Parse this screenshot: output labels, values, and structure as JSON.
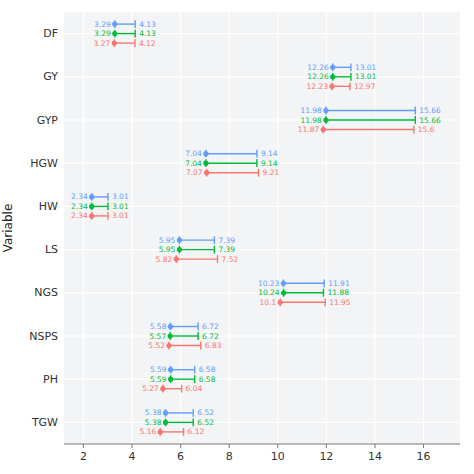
{
  "chart_data": {
    "type": "errorbar",
    "orientation": "horizontal",
    "ylabel": "Variable",
    "categories": [
      "DF",
      "GY",
      "GYP",
      "HGW",
      "HW",
      "LS",
      "NGS",
      "NSPS",
      "PH",
      "TGW"
    ],
    "series": [
      {
        "color": "#619CFF",
        "values": [
          3.29,
          12.26,
          11.98,
          7.04,
          2.34,
          5.95,
          10.23,
          5.58,
          5.59,
          5.38
        ],
        "lower": [
          3.29,
          12.26,
          11.98,
          7.04,
          2.34,
          5.95,
          10.23,
          5.58,
          5.59,
          5.38
        ],
        "upper": [
          4.13,
          13.01,
          15.66,
          9.14,
          3.01,
          7.39,
          11.91,
          6.72,
          6.58,
          6.52
        ]
      },
      {
        "color": "#00BA38",
        "values": [
          3.29,
          12.26,
          11.98,
          7.04,
          2.34,
          5.95,
          10.24,
          5.57,
          5.59,
          5.38
        ],
        "lower": [
          3.29,
          12.26,
          11.98,
          7.04,
          2.34,
          5.95,
          10.24,
          5.57,
          5.59,
          5.38
        ],
        "upper": [
          4.13,
          13.01,
          15.66,
          9.14,
          3.01,
          7.39,
          11.88,
          6.72,
          6.58,
          6.52
        ]
      },
      {
        "color": "#F8766D",
        "values": [
          3.27,
          12.23,
          11.87,
          7.07,
          2.34,
          5.82,
          10.1,
          5.52,
          5.27,
          5.16
        ],
        "lower": [
          3.27,
          12.23,
          11.87,
          7.07,
          2.34,
          5.82,
          10.1,
          5.52,
          5.27,
          5.16
        ],
        "upper": [
          4.12,
          12.97,
          15.6,
          9.21,
          3.01,
          7.52,
          11.95,
          6.83,
          6.04,
          6.12
        ]
      }
    ],
    "xlim": [
      1.2,
      17.5
    ],
    "xticks": [
      2,
      4,
      6,
      8,
      10,
      12,
      14,
      16
    ],
    "grid": true,
    "data_labels": true
  }
}
